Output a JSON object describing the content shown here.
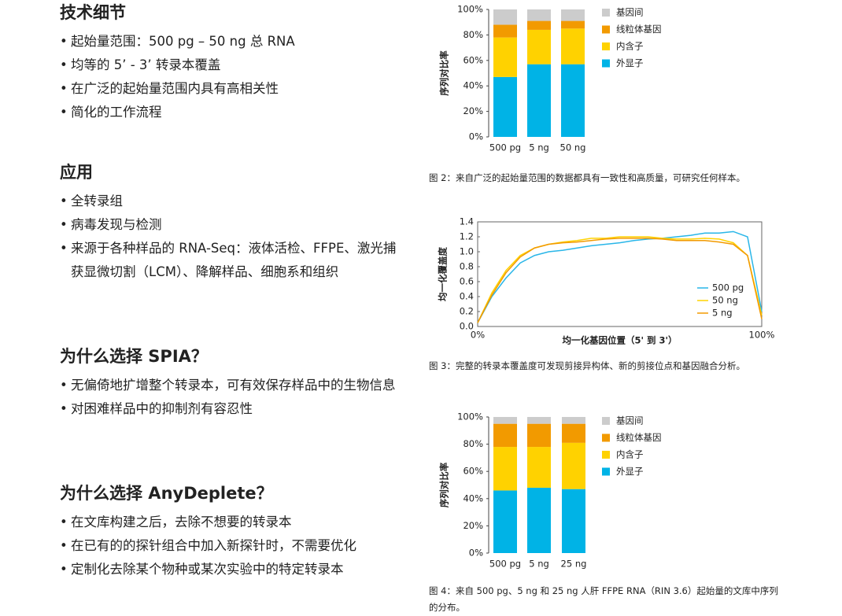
{
  "sections": [
    {
      "heading": "技术细节",
      "bullets": [
        "起始量范围：500 pg – 50 ng 总 RNA",
        "均等的 5’ - 3’ 转录本覆盖",
        "在广泛的起始量范围内具有高相关性",
        "简化的工作流程"
      ]
    },
    {
      "heading": "应用",
      "bullets": [
        "全转录组",
        "病毒发现与检测",
        "来源于各种样品的 RNA-Seq：液体活检、FFPE、激光捕获显微切割（LCM）、降解样品、细胞系和组织"
      ]
    },
    {
      "heading": "为什么选择 SPIA？",
      "bullets": [
        "无偏倚地扩增整个转录本，可有效保存样品中的生物信息",
        "对困难样品中的抑制剂有容忍性"
      ]
    },
    {
      "heading": "为什么选择 AnyDeplete？",
      "bullets": [
        "在文库构建之后，去除不想要的转录本",
        "在已有的的探针组合中加入新探针时，不需要优化",
        "定制化去除某个物种或某次实验中的特定转录本"
      ]
    }
  ],
  "chart_data": [
    {
      "type": "stacked-bar",
      "ylabel": "序列对比率",
      "caption": "图 2：来自广泛的起始量范围的数据都具有一致性和高质量，可研究任何样本。",
      "categories": [
        "500 pg",
        "5 ng",
        "50 ng"
      ],
      "series": [
        {
          "name": "外显子",
          "color": "#00b3e6",
          "values": [
            47,
            57,
            57
          ]
        },
        {
          "name": "内含子",
          "color": "#ffd200",
          "values": [
            31,
            27,
            28
          ]
        },
        {
          "name": "线粒体基因",
          "color": "#f29a00",
          "values": [
            10,
            7,
            6
          ]
        },
        {
          "name": "基因间",
          "color": "#cccccc",
          "values": [
            12,
            9,
            9
          ]
        }
      ],
      "ylim": [
        0,
        100
      ],
      "yticks": [
        {
          "value": 0,
          "label": "0%"
        },
        {
          "value": 20,
          "label": "20%"
        },
        {
          "value": 40,
          "label": "40%"
        },
        {
          "value": 60,
          "label": "60%"
        },
        {
          "value": 80,
          "label": "80%"
        },
        {
          "value": 100,
          "label": "100%"
        }
      ]
    },
    {
      "type": "line",
      "ylabel": "均一化覆盖度",
      "xlabel": "均一化基因位置（5' 到 3'）",
      "caption": "图 3：完整的转录本覆盖度可发现剪接异构体、新的剪接位点和基因融合分析。",
      "x": [
        0,
        5,
        10,
        15,
        20,
        25,
        30,
        35,
        40,
        45,
        50,
        55,
        60,
        65,
        70,
        75,
        80,
        85,
        90,
        95,
        100
      ],
      "series": [
        {
          "name": "500 pg",
          "color": "#29b6e8",
          "values": [
            0.05,
            0.4,
            0.65,
            0.85,
            0.95,
            1.0,
            1.02,
            1.05,
            1.08,
            1.1,
            1.12,
            1.15,
            1.17,
            1.18,
            1.2,
            1.22,
            1.25,
            1.25,
            1.27,
            1.2,
            0.2
          ]
        },
        {
          "name": "50 ng",
          "color": "#ffd200",
          "values": [
            0.05,
            0.45,
            0.75,
            0.95,
            1.05,
            1.1,
            1.13,
            1.15,
            1.18,
            1.18,
            1.2,
            1.2,
            1.2,
            1.18,
            1.17,
            1.17,
            1.18,
            1.17,
            1.12,
            0.95,
            0.15
          ]
        },
        {
          "name": "5 ng",
          "color": "#f29a00",
          "values": [
            0.05,
            0.42,
            0.72,
            0.93,
            1.05,
            1.1,
            1.12,
            1.13,
            1.15,
            1.17,
            1.18,
            1.18,
            1.18,
            1.17,
            1.15,
            1.15,
            1.15,
            1.13,
            1.1,
            0.95,
            0.1
          ]
        }
      ],
      "xlim": [
        0,
        100
      ],
      "xticks": [
        {
          "value": 0,
          "label": "0%"
        },
        {
          "value": 100,
          "label": "100%"
        }
      ],
      "ylim": [
        0,
        1.4
      ],
      "yticks": [
        {
          "value": 0,
          "label": "0.0"
        },
        {
          "value": 0.2,
          "label": "0.2"
        },
        {
          "value": 0.4,
          "label": "0.4"
        },
        {
          "value": 0.6,
          "label": "0.6"
        },
        {
          "value": 0.8,
          "label": "0.8"
        },
        {
          "value": 1,
          "label": "1.0"
        },
        {
          "value": 1.2,
          "label": "1.2"
        },
        {
          "value": 1.4,
          "label": "1.4"
        }
      ]
    },
    {
      "type": "stacked-bar",
      "ylabel": "序列对比率",
      "caption": "图 4：来自 500 pg、5 ng 和 25 ng 人肝 FFPE RNA（RIN 3.6）起始量的文库中序列的分布。",
      "categories": [
        "500 pg",
        "5 ng",
        "25 ng"
      ],
      "series": [
        {
          "name": "外显子",
          "color": "#00b3e6",
          "values": [
            46,
            48,
            47
          ]
        },
        {
          "name": "内含子",
          "color": "#ffd200",
          "values": [
            32,
            30,
            34
          ]
        },
        {
          "name": "线粒体基因",
          "color": "#f29a00",
          "values": [
            17,
            17,
            14
          ]
        },
        {
          "name": "基因间",
          "color": "#cccccc",
          "values": [
            5,
            5,
            5
          ]
        }
      ],
      "ylim": [
        0,
        100
      ],
      "yticks": [
        {
          "value": 0,
          "label": "0%"
        },
        {
          "value": 20,
          "label": "20%"
        },
        {
          "value": 40,
          "label": "40%"
        },
        {
          "value": 60,
          "label": "60%"
        },
        {
          "value": 80,
          "label": "80%"
        },
        {
          "value": 100,
          "label": "100%"
        }
      ]
    }
  ]
}
